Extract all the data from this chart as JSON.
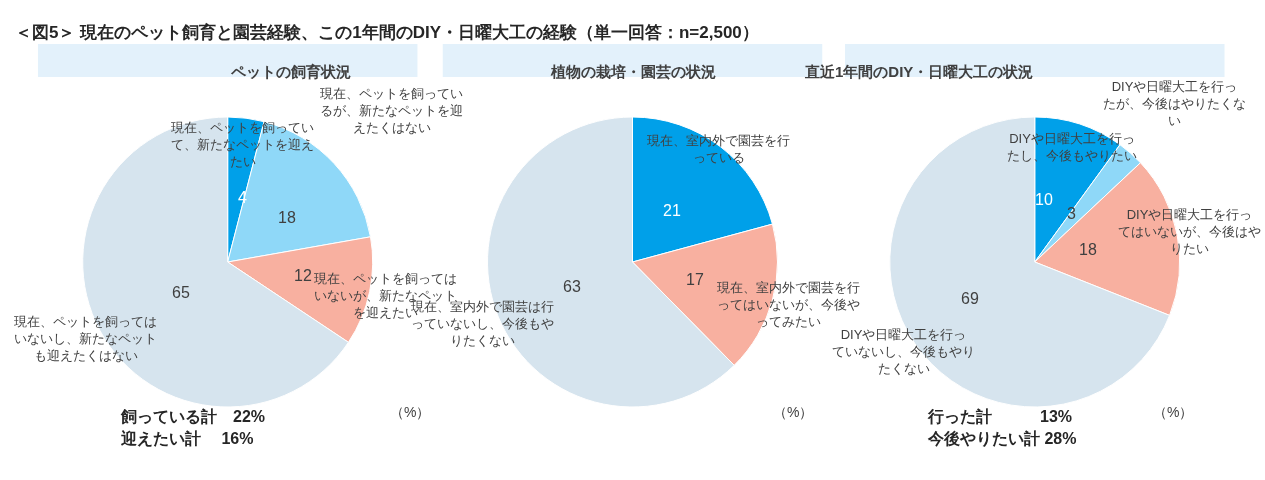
{
  "chart_data": [
    {
      "type": "pie",
      "title": "ペットの飼育状況",
      "annotations": [
        "＜図5＞ 現在のペット飼育と園芸経験、この1年間のDIY・日曜大工の経験（単一回答：n=2,500）",
        "（%）",
        "飼っている計　22%",
        "迎えたい計　 16%"
      ],
      "categories": [
        "現在、ペットを飼っていて、新たなペットを迎えたい",
        "現在、ペットを飼っているが、新たなペットを迎えたくはない",
        "現在、ペットを飼ってはいないが、新たなペットを迎えたい",
        "現在、ペットを飼ってはいないし、新たなペットも迎えたくはない"
      ],
      "values": [
        4,
        18,
        12,
        65
      ],
      "colors": [
        "#00a0e9",
        "#8fd8f8",
        "#f8b0a0",
        "#d6e4ee"
      ],
      "data_labels": true
    },
    {
      "type": "pie",
      "title": "植物の栽培・園芸の状況",
      "annotations": [
        "（%）"
      ],
      "categories": [
        "現在、室内外で園芸を行っている",
        "現在、室内外で園芸を行ってはいないが、今後やってみたい",
        "現在、室内外で園芸は行っていないし、今後もやりたくない"
      ],
      "values": [
        21,
        17,
        63
      ],
      "colors": [
        "#00a0e9",
        "#f8b0a0",
        "#d6e4ee"
      ],
      "data_labels": true
    },
    {
      "type": "pie",
      "title": "直近1年間のDIY・日曜大工の状況",
      "annotations": [
        "（%）",
        "行った計　　　13%",
        "今後やりたい計 28%"
      ],
      "categories": [
        "DIYや日曜大工を行ったし、今後もやりたい",
        "DIYや日曜大工を行ったが、今後はやりたくない",
        "DIYや日曜大工を行ってはいないが、今後はやりたい",
        "DIYや日曜大工を行っていないし、今後もやりたくない"
      ],
      "values": [
        10,
        3,
        18,
        69
      ],
      "colors": [
        "#00a0e9",
        "#8fd8f8",
        "#f8b0a0",
        "#d6e4ee"
      ],
      "data_labels": true
    }
  ]
}
